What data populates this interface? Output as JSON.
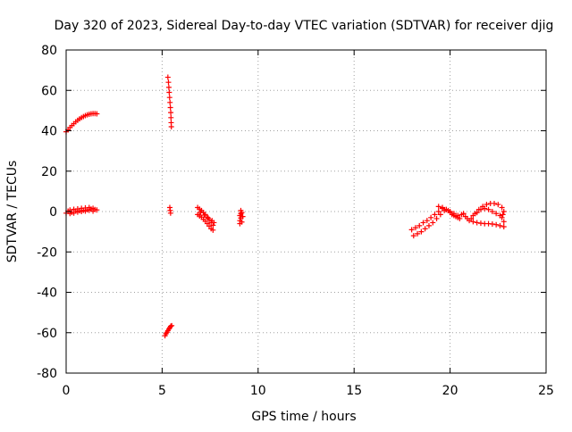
{
  "chart_data": {
    "type": "scatter",
    "title": "Day 320 of 2023, Sidereal Day-to-day VTEC variation (SDTVAR) for receiver djig",
    "xlabel": "GPS time / hours",
    "ylabel": "SDTVAR / TECUs",
    "xlim": [
      0,
      25
    ],
    "ylim": [
      -80,
      80
    ],
    "x_ticks": [
      0,
      5,
      10,
      15,
      20,
      25
    ],
    "y_ticks": [
      -80,
      -60,
      -40,
      -20,
      0,
      20,
      40,
      60,
      80
    ],
    "grid": true,
    "legend": "none",
    "marker": "plus",
    "color": "#ff0000",
    "series": [
      {
        "points": [
          [
            0.0,
            39.5
          ],
          [
            0.1,
            40.5
          ],
          [
            0.2,
            41.6
          ],
          [
            0.3,
            42.6
          ],
          [
            0.4,
            43.5
          ],
          [
            0.5,
            44.4
          ],
          [
            0.6,
            45.2
          ],
          [
            0.7,
            45.9
          ],
          [
            0.8,
            46.5
          ],
          [
            0.9,
            47.0
          ],
          [
            1.0,
            47.5
          ],
          [
            1.1,
            47.9
          ],
          [
            1.2,
            48.2
          ],
          [
            1.3,
            48.4
          ],
          [
            1.4,
            48.5
          ],
          [
            1.5,
            48.5
          ],
          [
            1.6,
            48.4
          ],
          [
            0.0,
            -0.8
          ],
          [
            0.1,
            0.2
          ],
          [
            0.2,
            0.8
          ],
          [
            0.3,
            -0.5
          ],
          [
            0.4,
            1.1
          ],
          [
            0.5,
            0.3
          ],
          [
            0.6,
            1.3
          ],
          [
            0.7,
            0.4
          ],
          [
            0.8,
            1.6
          ],
          [
            0.9,
            0.6
          ],
          [
            1.0,
            1.8
          ],
          [
            1.1,
            0.9
          ],
          [
            1.2,
            2.0
          ],
          [
            1.3,
            1.2
          ],
          [
            1.4,
            1.6
          ],
          [
            1.5,
            1.0
          ],
          [
            1.6,
            0.8
          ],
          [
            0.2,
            -1.0
          ],
          [
            0.4,
            -0.8
          ],
          [
            0.6,
            -0.3
          ],
          [
            0.8,
            0.0
          ],
          [
            1.0,
            0.2
          ],
          [
            1.2,
            0.6
          ],
          [
            1.4,
            0.2
          ],
          [
            5.3,
            66.5
          ],
          [
            5.33,
            64.0
          ],
          [
            5.35,
            61.5
          ],
          [
            5.37,
            59.0
          ],
          [
            5.39,
            56.5
          ],
          [
            5.41,
            54.0
          ],
          [
            5.43,
            51.5
          ],
          [
            5.45,
            49.0
          ],
          [
            5.46,
            46.5
          ],
          [
            5.47,
            44.0
          ],
          [
            5.48,
            42.0
          ],
          [
            5.4,
            2.0
          ],
          [
            5.42,
            0.5
          ],
          [
            5.44,
            -0.8
          ],
          [
            5.15,
            -61.5
          ],
          [
            5.2,
            -60.5
          ],
          [
            5.25,
            -59.8
          ],
          [
            5.3,
            -59.0
          ],
          [
            5.35,
            -58.2
          ],
          [
            5.4,
            -57.5
          ],
          [
            5.45,
            -56.8
          ],
          [
            5.5,
            -56.5
          ],
          [
            6.85,
            2.0
          ],
          [
            6.95,
            1.2
          ],
          [
            7.05,
            0.5
          ],
          [
            7.15,
            -0.5
          ],
          [
            7.25,
            -1.5
          ],
          [
            7.35,
            -2.8
          ],
          [
            7.45,
            -4.0
          ],
          [
            7.55,
            -5.5
          ],
          [
            7.65,
            -6.8
          ],
          [
            6.85,
            -1.5
          ],
          [
            6.95,
            -2.2
          ],
          [
            7.05,
            -2.8
          ],
          [
            7.15,
            -3.8
          ],
          [
            7.25,
            -4.8
          ],
          [
            7.35,
            -6.0
          ],
          [
            7.45,
            -7.2
          ],
          [
            7.55,
            -8.5
          ],
          [
            7.65,
            -9.2
          ],
          [
            7.0,
            -0.5
          ],
          [
            7.2,
            -1.8
          ],
          [
            7.4,
            -3.2
          ],
          [
            7.6,
            -4.5
          ],
          [
            7.7,
            -5.5
          ],
          [
            9.05,
            -2.0
          ],
          [
            9.05,
            -4.5
          ],
          [
            9.05,
            -6.0
          ],
          [
            9.1,
            0.5
          ],
          [
            9.1,
            -1.0
          ],
          [
            9.1,
            -3.2
          ],
          [
            9.15,
            -0.5
          ],
          [
            9.15,
            -5.2
          ],
          [
            9.2,
            -2.5
          ],
          [
            18.0,
            -9.0
          ],
          [
            18.1,
            -12.0
          ],
          [
            18.2,
            -8.0
          ],
          [
            18.3,
            -11.0
          ],
          [
            18.4,
            -7.0
          ],
          [
            18.5,
            -10.0
          ],
          [
            18.6,
            -5.5
          ],
          [
            18.7,
            -8.5
          ],
          [
            18.8,
            -4.5
          ],
          [
            18.9,
            -7.0
          ],
          [
            19.0,
            -3.0
          ],
          [
            19.1,
            -5.5
          ],
          [
            19.2,
            -1.5
          ],
          [
            19.3,
            -3.5
          ],
          [
            19.4,
            0.0
          ],
          [
            19.5,
            -1.5
          ],
          [
            19.6,
            1.5
          ],
          [
            19.7,
            0.5
          ],
          [
            19.8,
            1.0
          ],
          [
            19.9,
            0.5
          ],
          [
            20.0,
            -0.5
          ],
          [
            20.1,
            -1.5
          ],
          [
            20.2,
            -2.0
          ],
          [
            20.3,
            -2.5
          ],
          [
            20.4,
            -3.0
          ],
          [
            20.5,
            -3.5
          ],
          [
            19.4,
            2.5
          ],
          [
            19.6,
            2.0
          ],
          [
            19.8,
            1.0
          ],
          [
            20.0,
            0.0
          ],
          [
            20.2,
            -1.0
          ],
          [
            20.4,
            -2.0
          ],
          [
            20.6,
            -1.5
          ],
          [
            20.7,
            -1.0
          ],
          [
            20.8,
            -2.5
          ],
          [
            20.9,
            -3.5
          ],
          [
            21.0,
            -4.5
          ],
          [
            21.1,
            -3.5
          ],
          [
            21.3,
            -1.0
          ],
          [
            21.5,
            1.0
          ],
          [
            21.7,
            2.5
          ],
          [
            21.9,
            3.5
          ],
          [
            22.1,
            4.0
          ],
          [
            22.3,
            4.0
          ],
          [
            22.5,
            3.5
          ],
          [
            22.7,
            2.0
          ],
          [
            22.8,
            0.0
          ],
          [
            21.2,
            -2.0
          ],
          [
            21.4,
            -0.5
          ],
          [
            21.6,
            1.0
          ],
          [
            21.8,
            1.5
          ],
          [
            22.0,
            1.0
          ],
          [
            22.2,
            0.0
          ],
          [
            22.4,
            -1.0
          ],
          [
            22.6,
            -2.0
          ],
          [
            21.2,
            -5.0
          ],
          [
            21.4,
            -5.5
          ],
          [
            21.6,
            -5.8
          ],
          [
            21.8,
            -6.0
          ],
          [
            22.0,
            -6.0
          ],
          [
            22.2,
            -6.2
          ],
          [
            22.4,
            -6.5
          ],
          [
            22.6,
            -7.0
          ],
          [
            22.8,
            -7.5
          ],
          [
            22.7,
            -3.0
          ],
          [
            22.8,
            -5.0
          ],
          [
            22.75,
            -1.5
          ]
        ]
      }
    ]
  }
}
